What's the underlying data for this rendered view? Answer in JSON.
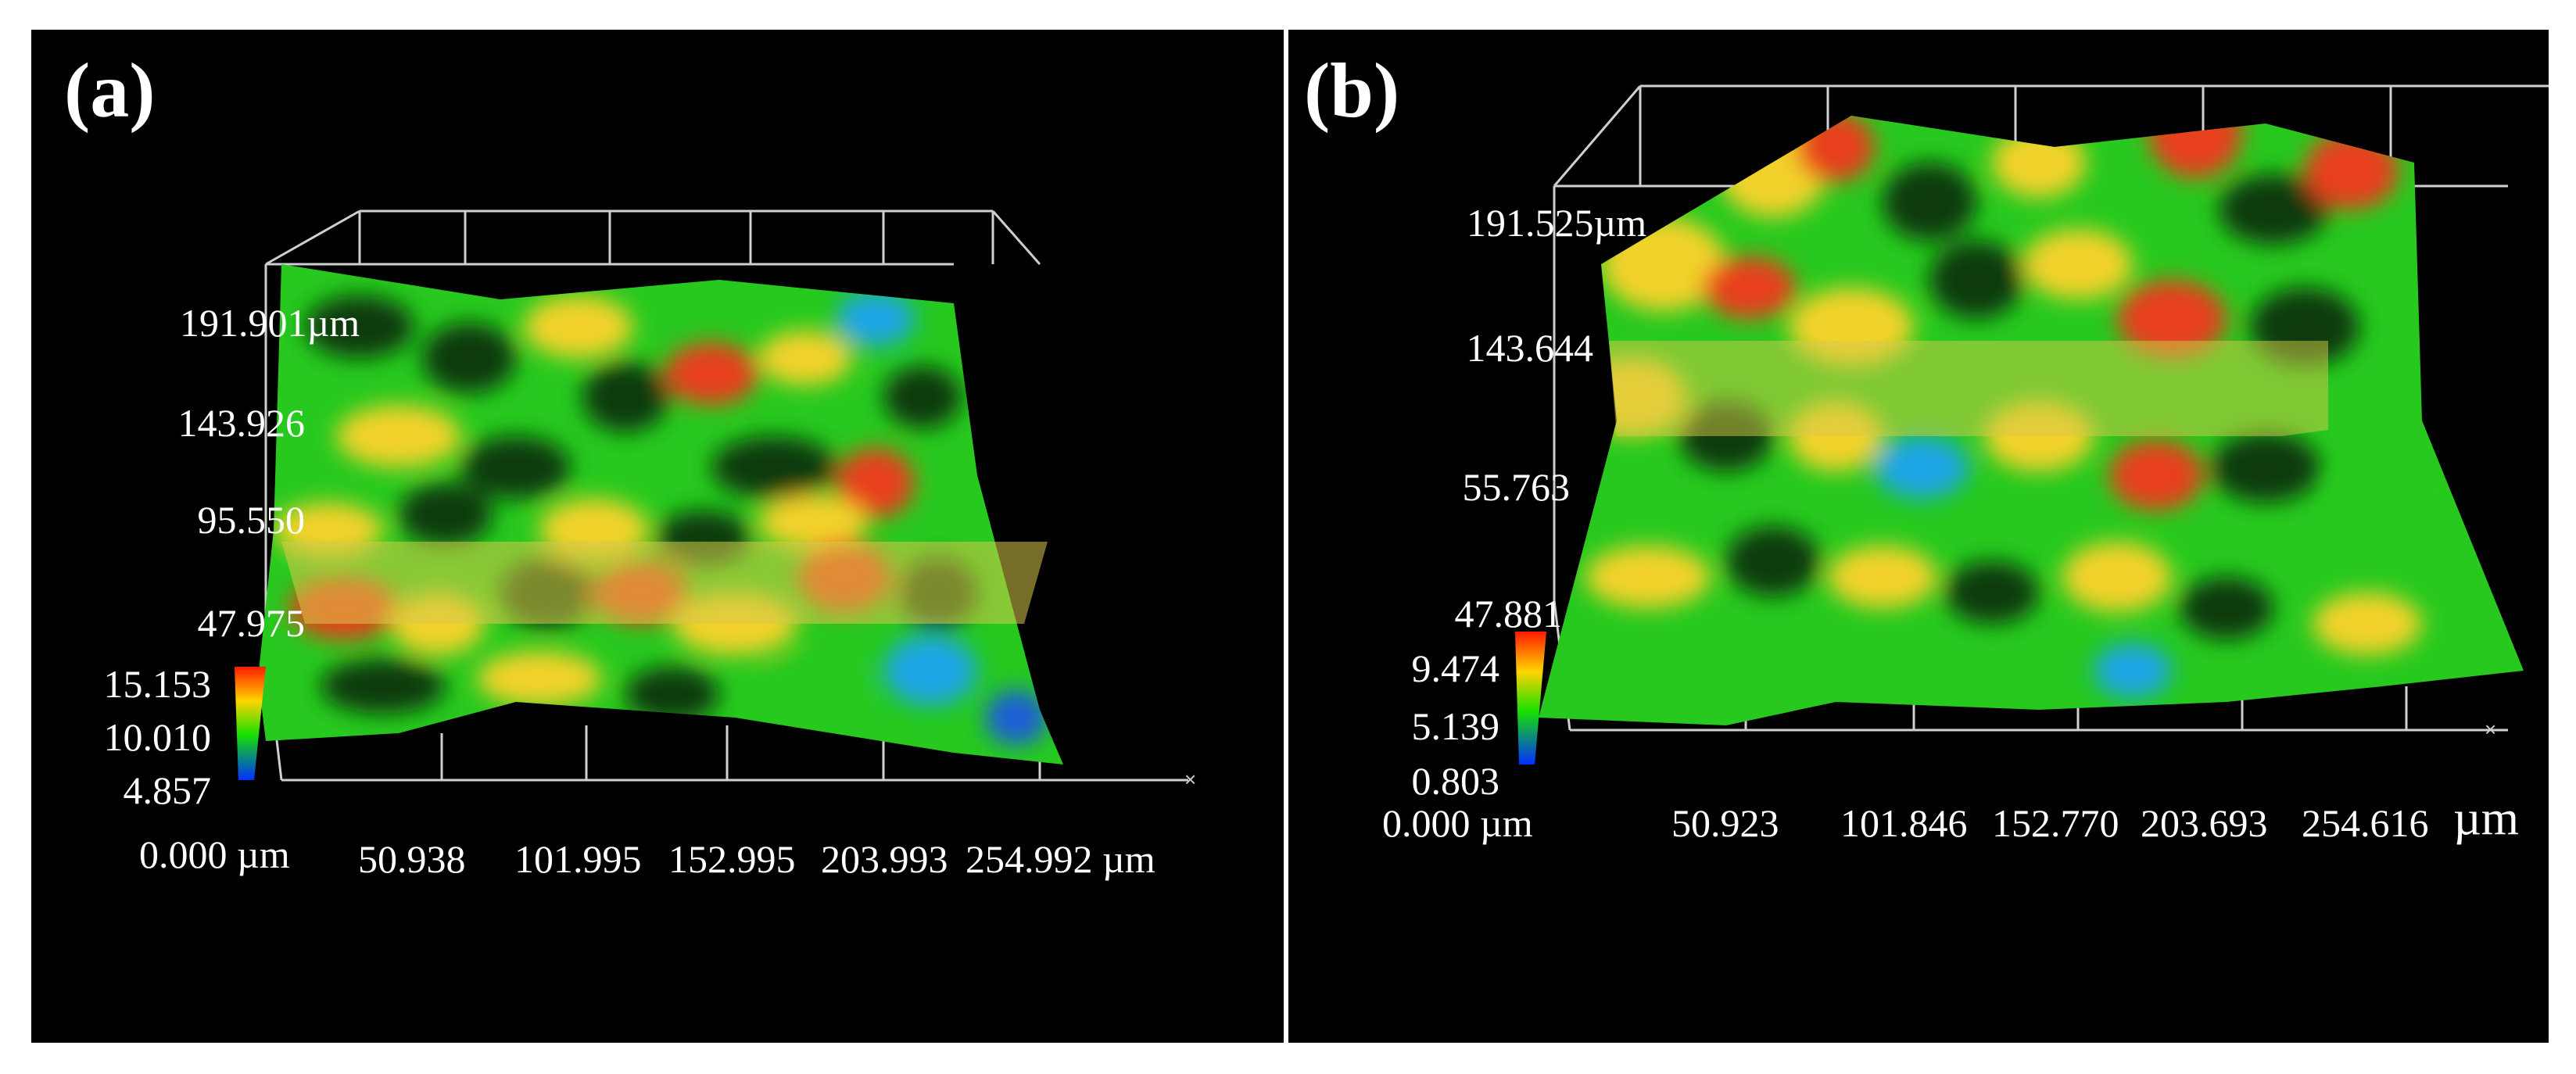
{
  "panels": [
    {
      "label": "(a)",
      "y_ticks": [
        "191.901",
        "143.926",
        "95.550",
        "47.975"
      ],
      "y_unit": "µm",
      "x_ticks": [
        "0.000 µm",
        "50.938",
        "101.995",
        "152.995",
        "203.993",
        "254.992 µm"
      ],
      "colorbar": [
        "15.153",
        "10.010",
        "4.857"
      ]
    },
    {
      "label": "(b)",
      "y_ticks": [
        "191.525",
        "143.644",
        "55.763",
        "47.881"
      ],
      "y_unit": "µm",
      "x_ticks": [
        "0.000 µm",
        "50.923",
        "101.846",
        "152.770",
        "203.693",
        "254.616"
      ],
      "x_unit": "µm",
      "colorbar": [
        "9.474",
        "5.139",
        "0.803"
      ]
    }
  ],
  "colors": {
    "background": "#000000",
    "frame": "#ffffff",
    "surface_base": "#27c91f",
    "peak": "#e8401c",
    "mid": "#f2d22a",
    "valley": "#1aa6e6",
    "section_plane": "#d8c94a"
  }
}
